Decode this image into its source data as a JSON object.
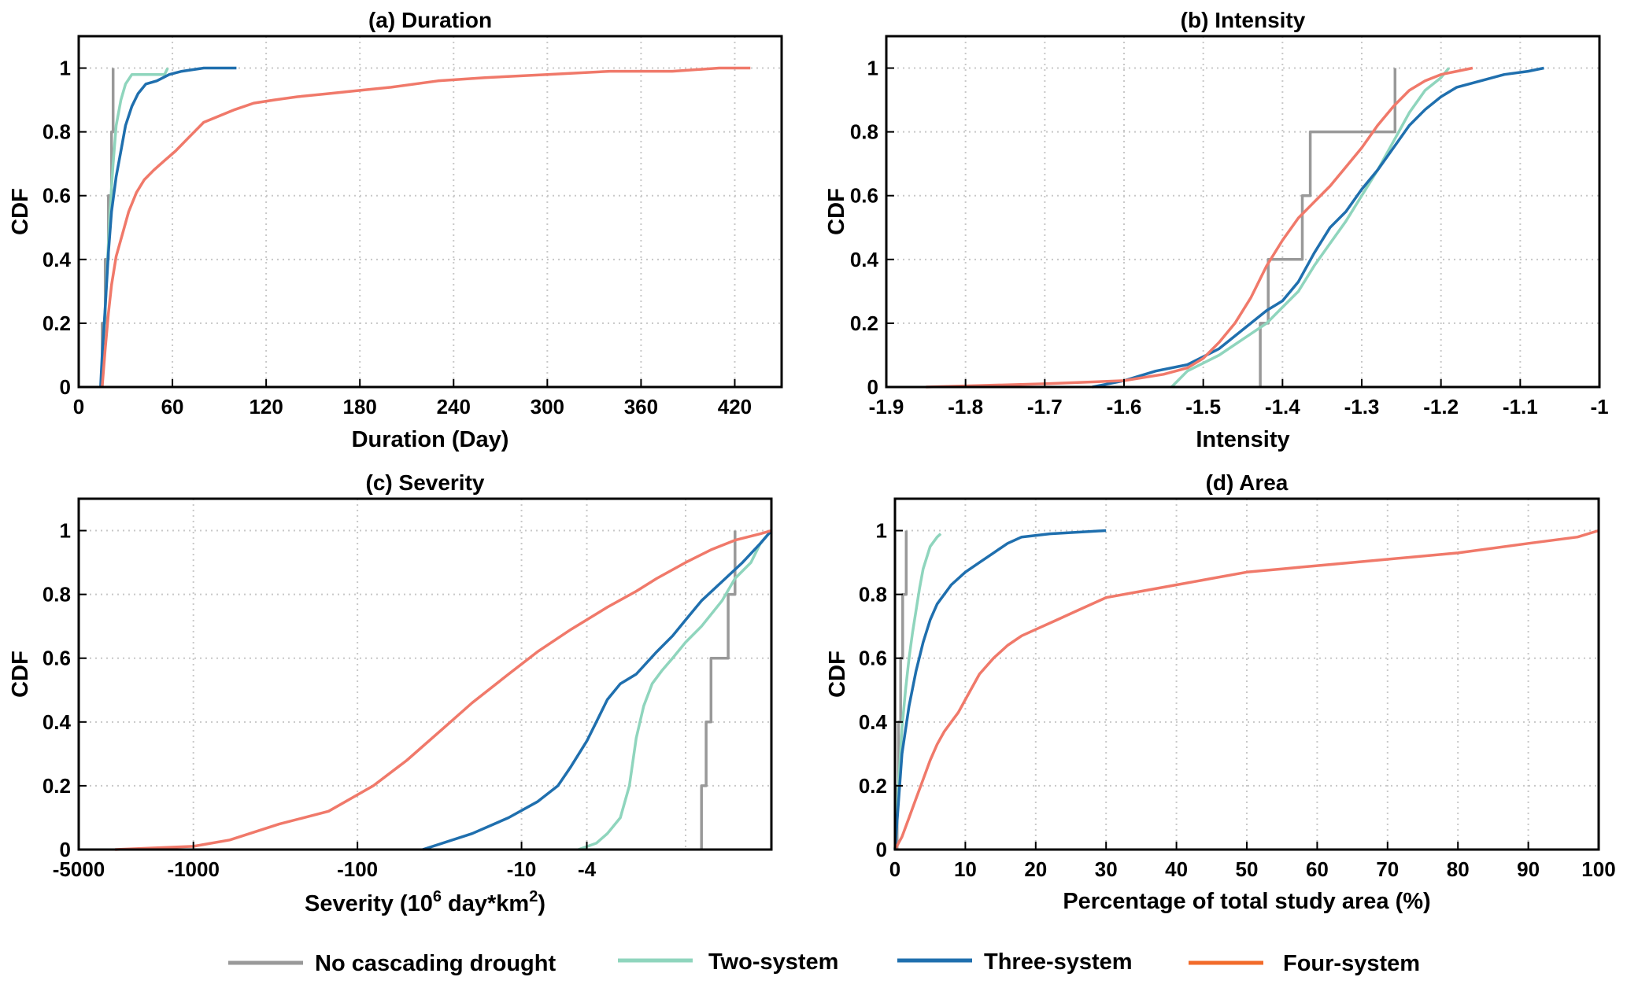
{
  "colors": {
    "no_cascade": "#999999",
    "two_system": "#8fd5bd",
    "three_system": "#1f6fae",
    "four_system": "#f0796a",
    "legend_four_system": "#f26b2a"
  },
  "legend": [
    {
      "label": "No cascading drought",
      "color_key": "no_cascade"
    },
    {
      "label": "Two-system",
      "color_key": "two_system"
    },
    {
      "label": "Three-system",
      "color_key": "three_system"
    },
    {
      "label": "Four-system",
      "color_key": "legend_four_system"
    }
  ],
  "chart_data": [
    {
      "type": "line",
      "title": "(a) Duration",
      "xlabel": "Duration (Day)",
      "ylabel": "CDF",
      "xlim": [
        0,
        450
      ],
      "ylim": [
        0,
        1.1
      ],
      "xticks": [
        0,
        60,
        120,
        180,
        240,
        300,
        360,
        420
      ],
      "xticklabels": [
        "0",
        "60",
        "120",
        "180",
        "240",
        "300",
        "360",
        "420"
      ],
      "yticks": [
        0,
        0.2,
        0.4,
        0.6,
        0.8,
        1
      ],
      "yticklabels": [
        "0",
        "0.2",
        "0.4",
        "0.6",
        "0.8",
        "1"
      ],
      "grid": true,
      "series": [
        {
          "name": "No cascading drought",
          "color_key": "no_cascade",
          "step": true,
          "x": [
            15,
            15,
            17,
            19,
            21,
            22
          ],
          "y": [
            0,
            0.2,
            0.4,
            0.6,
            0.8,
            1.0
          ]
        },
        {
          "name": "Two-system",
          "color_key": "two_system",
          "step": false,
          "x": [
            15,
            16,
            18,
            20,
            22,
            24,
            27,
            30,
            34,
            40,
            47,
            55,
            57
          ],
          "y": [
            0,
            0.15,
            0.35,
            0.55,
            0.7,
            0.82,
            0.9,
            0.95,
            0.98,
            0.98,
            0.98,
            0.98,
            1.0
          ]
        },
        {
          "name": "Three-system",
          "color_key": "three_system",
          "step": false,
          "x": [
            14,
            15,
            17,
            19,
            21,
            24,
            27,
            30,
            34,
            38,
            43,
            50,
            58,
            66,
            80,
            101
          ],
          "y": [
            0,
            0.1,
            0.25,
            0.42,
            0.55,
            0.66,
            0.74,
            0.82,
            0.88,
            0.92,
            0.95,
            0.96,
            0.98,
            0.99,
            1.0,
            1.0
          ]
        },
        {
          "name": "Four-system",
          "color_key": "four_system",
          "step": false,
          "x": [
            15,
            17,
            19,
            21,
            24,
            28,
            32,
            37,
            42,
            48,
            55,
            62,
            70,
            80,
            90,
            100,
            112,
            125,
            140,
            160,
            180,
            200,
            230,
            260,
            300,
            340,
            380,
            410,
            430
          ],
          "y": [
            0,
            0.12,
            0.23,
            0.32,
            0.41,
            0.48,
            0.55,
            0.61,
            0.65,
            0.68,
            0.71,
            0.74,
            0.78,
            0.83,
            0.85,
            0.87,
            0.89,
            0.9,
            0.91,
            0.92,
            0.93,
            0.94,
            0.96,
            0.97,
            0.98,
            0.99,
            0.99,
            1.0,
            1.0
          ]
        }
      ]
    },
    {
      "type": "line",
      "title": "(b) Intensity",
      "xlabel": "Intensity",
      "ylabel": "CDF",
      "xlim": [
        -1.9,
        -1.0
      ],
      "ylim": [
        0,
        1.1
      ],
      "xticks": [
        -1.9,
        -1.8,
        -1.7,
        -1.6,
        -1.5,
        -1.4,
        -1.3,
        -1.2,
        -1.1,
        -1.0
      ],
      "xticklabels": [
        "-1.9",
        "-1.8",
        "-1.7",
        "-1.6",
        "-1.5",
        "-1.4",
        "-1.3",
        "-1.2",
        "-1.1",
        "-1"
      ],
      "yticks": [
        0,
        0.2,
        0.4,
        0.6,
        0.8,
        1
      ],
      "yticklabels": [
        "0",
        "0.2",
        "0.4",
        "0.6",
        "0.8",
        "1"
      ],
      "grid": true,
      "series": [
        {
          "name": "No cascading drought",
          "color_key": "no_cascade",
          "step": true,
          "x": [
            -1.428,
            -1.428,
            -1.418,
            -1.375,
            -1.365,
            -1.258
          ],
          "y": [
            0,
            0.2,
            0.4,
            0.6,
            0.8,
            1.0
          ]
        },
        {
          "name": "Two-system",
          "color_key": "two_system",
          "step": false,
          "x": [
            -1.54,
            -1.52,
            -1.48,
            -1.45,
            -1.42,
            -1.4,
            -1.38,
            -1.36,
            -1.34,
            -1.32,
            -1.3,
            -1.28,
            -1.26,
            -1.24,
            -1.22,
            -1.2,
            -1.19
          ],
          "y": [
            0,
            0.05,
            0.1,
            0.15,
            0.2,
            0.25,
            0.3,
            0.38,
            0.45,
            0.52,
            0.6,
            0.68,
            0.77,
            0.86,
            0.93,
            0.97,
            1.0
          ]
        },
        {
          "name": "Three-system",
          "color_key": "three_system",
          "step": false,
          "x": [
            -1.64,
            -1.6,
            -1.56,
            -1.52,
            -1.48,
            -1.45,
            -1.42,
            -1.4,
            -1.38,
            -1.36,
            -1.34,
            -1.32,
            -1.3,
            -1.28,
            -1.26,
            -1.24,
            -1.22,
            -1.2,
            -1.18,
            -1.15,
            -1.12,
            -1.09,
            -1.07
          ],
          "y": [
            0,
            0.02,
            0.05,
            0.07,
            0.12,
            0.18,
            0.24,
            0.27,
            0.33,
            0.42,
            0.5,
            0.55,
            0.62,
            0.68,
            0.75,
            0.82,
            0.87,
            0.91,
            0.94,
            0.96,
            0.98,
            0.99,
            1.0
          ]
        },
        {
          "name": "Four-system",
          "color_key": "four_system",
          "step": false,
          "x": [
            -1.85,
            -1.7,
            -1.6,
            -1.55,
            -1.52,
            -1.5,
            -1.48,
            -1.46,
            -1.44,
            -1.42,
            -1.4,
            -1.38,
            -1.36,
            -1.34,
            -1.32,
            -1.3,
            -1.28,
            -1.26,
            -1.24,
            -1.22,
            -1.2,
            -1.18,
            -1.16
          ],
          "y": [
            0,
            0.01,
            0.02,
            0.04,
            0.06,
            0.09,
            0.14,
            0.2,
            0.28,
            0.38,
            0.46,
            0.53,
            0.58,
            0.63,
            0.69,
            0.75,
            0.82,
            0.88,
            0.93,
            0.96,
            0.98,
            0.99,
            1.0
          ]
        }
      ]
    },
    {
      "type": "line",
      "title": "(c) Severity",
      "xlabel": "Severity (10^6 day*km^2)",
      "xlabel_parts": {
        "pre": "Severity (10",
        "sup1": "6",
        "mid": " day*km",
        "sup2": "2",
        "post": ")"
      },
      "ylabel": "CDF",
      "x_scale": "negative-log (-|x|, log10)",
      "xlim": [
        -5000,
        -0.3
      ],
      "ylim": [
        0,
        1.1
      ],
      "xticks": [
        -5000,
        -1000,
        -100,
        -10,
        -4
      ],
      "xticklabels": [
        "-5000",
        "-1000",
        "-100",
        "-10",
        "-4"
      ],
      "extra_gridlines_x": [
        -1
      ],
      "yticks": [
        0,
        0.2,
        0.4,
        0.6,
        0.8,
        1
      ],
      "yticklabels": [
        "0",
        "0.2",
        "0.4",
        "0.6",
        "0.8",
        "1"
      ],
      "grid": true,
      "series": [
        {
          "name": "No cascading drought",
          "color_key": "no_cascade",
          "step": true,
          "x": [
            -0.8,
            -0.8,
            -0.75,
            -0.7,
            -0.55,
            -0.5
          ],
          "y": [
            0,
            0.2,
            0.4,
            0.6,
            0.8,
            1.0
          ]
        },
        {
          "name": "Two-system",
          "color_key": "two_system",
          "step": false,
          "x": [
            -4.5,
            -3.5,
            -3,
            -2.5,
            -2.2,
            -2,
            -1.8,
            -1.6,
            -1.4,
            -1.2,
            -1,
            -0.8,
            -0.6,
            -0.5,
            -0.4,
            -0.35,
            -0.3
          ],
          "y": [
            0,
            0.02,
            0.05,
            0.1,
            0.2,
            0.35,
            0.45,
            0.52,
            0.56,
            0.6,
            0.65,
            0.7,
            0.78,
            0.85,
            0.9,
            0.96,
            1.0
          ]
        },
        {
          "name": "Three-system",
          "color_key": "three_system",
          "step": false,
          "x": [
            -40,
            -20,
            -12,
            -8,
            -6,
            -5,
            -4,
            -3.5,
            -3,
            -2.5,
            -2,
            -1.5,
            -1.2,
            -1,
            -0.8,
            -0.6,
            -0.45,
            -0.35,
            -0.3
          ],
          "y": [
            0,
            0.05,
            0.1,
            0.15,
            0.2,
            0.26,
            0.34,
            0.4,
            0.47,
            0.52,
            0.55,
            0.62,
            0.67,
            0.72,
            0.78,
            0.84,
            0.9,
            0.96,
            1.0
          ]
        },
        {
          "name": "Four-system",
          "color_key": "four_system",
          "step": false,
          "x": [
            -3000,
            -1000,
            -600,
            -300,
            -150,
            -80,
            -50,
            -30,
            -20,
            -12,
            -8,
            -5,
            -3,
            -2,
            -1.5,
            -1,
            -0.7,
            -0.5,
            -0.35,
            -0.3
          ],
          "y": [
            0,
            0.01,
            0.03,
            0.08,
            0.12,
            0.2,
            0.28,
            0.38,
            0.46,
            0.55,
            0.62,
            0.69,
            0.76,
            0.81,
            0.85,
            0.9,
            0.94,
            0.97,
            0.99,
            1.0
          ]
        }
      ]
    },
    {
      "type": "line",
      "title": "(d) Area",
      "xlabel": "Percentage of total study area (%)",
      "ylabel": "CDF",
      "xlim": [
        0,
        100
      ],
      "ylim": [
        0,
        1.1
      ],
      "xticks": [
        0,
        10,
        20,
        30,
        40,
        50,
        60,
        70,
        80,
        90,
        100
      ],
      "xticklabels": [
        "0",
        "10",
        "20",
        "30",
        "40",
        "50",
        "60",
        "70",
        "80",
        "90",
        "100"
      ],
      "yticks": [
        0,
        0.2,
        0.4,
        0.6,
        0.8,
        1
      ],
      "yticklabels": [
        "0",
        "0.2",
        "0.4",
        "0.6",
        "0.8",
        "1"
      ],
      "grid": true,
      "series": [
        {
          "name": "No cascading drought",
          "color_key": "no_cascade",
          "step": true,
          "x": [
            0.3,
            0.3,
            0.5,
            0.8,
            1.1,
            1.6
          ],
          "y": [
            0,
            0.2,
            0.4,
            0.6,
            0.8,
            1.0
          ]
        },
        {
          "name": "Two-system",
          "color_key": "two_system",
          "step": false,
          "x": [
            0,
            0.5,
            1,
            1.5,
            2,
            2.5,
            3,
            3.5,
            4,
            5,
            6,
            6.5
          ],
          "y": [
            0,
            0.2,
            0.38,
            0.5,
            0.6,
            0.68,
            0.75,
            0.82,
            0.88,
            0.95,
            0.98,
            0.99
          ]
        },
        {
          "name": "Three-system",
          "color_key": "three_system",
          "step": false,
          "x": [
            0,
            0.5,
            1,
            2,
            3,
            4,
            5,
            6,
            8,
            10,
            12,
            14,
            16,
            18,
            22,
            30
          ],
          "y": [
            0,
            0.15,
            0.3,
            0.45,
            0.56,
            0.65,
            0.72,
            0.77,
            0.83,
            0.87,
            0.9,
            0.93,
            0.96,
            0.98,
            0.99,
            1.0
          ]
        },
        {
          "name": "Four-system",
          "color_key": "four_system",
          "step": false,
          "x": [
            0,
            1,
            2,
            3,
            4,
            5,
            6,
            7,
            8,
            9,
            10,
            12,
            14,
            16,
            18,
            20,
            23,
            26,
            30,
            35,
            40,
            45,
            50,
            55,
            60,
            70,
            80,
            90,
            97,
            100
          ],
          "y": [
            0,
            0.04,
            0.1,
            0.16,
            0.22,
            0.28,
            0.33,
            0.37,
            0.4,
            0.43,
            0.47,
            0.55,
            0.6,
            0.64,
            0.67,
            0.69,
            0.72,
            0.75,
            0.79,
            0.81,
            0.83,
            0.85,
            0.87,
            0.88,
            0.89,
            0.91,
            0.93,
            0.96,
            0.98,
            1.0
          ]
        }
      ]
    }
  ]
}
